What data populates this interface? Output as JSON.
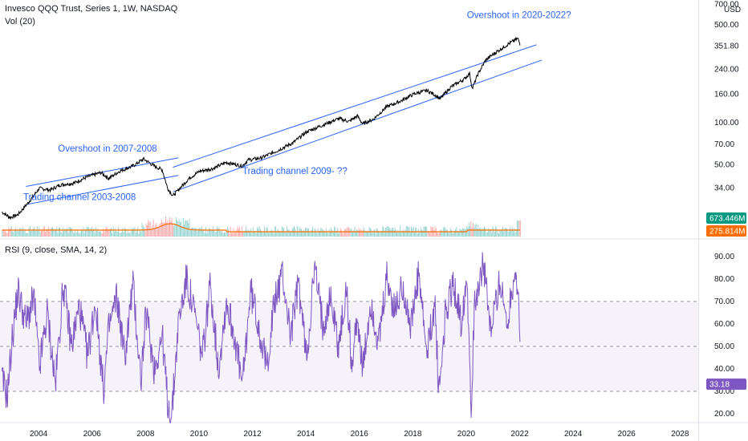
{
  "header": {
    "symbol": "Invesco QQQ Trust, Series 1, 1W, NASDAQ",
    "volume_label": "Vol (20)",
    "currency": "USD",
    "rsi_label": "RSI (9, close, SMA, 14, 2)"
  },
  "colors": {
    "price": "#000000",
    "channel": "#2962ff",
    "annotation": "#2962ff",
    "vol_up": "#26a69a",
    "vol_down": "#ef5350",
    "vol_ma": "#ff6d00",
    "rsi": "#7e57c2",
    "rsi_band": "#7e57c2",
    "volume_badge": "#089981",
    "vol_ma_badge": "#ff6d00",
    "rsi_badge": "#7e57c2"
  },
  "badges": {
    "volume": "673.446M",
    "volume_ma": "275.814M",
    "rsi": "33.18"
  },
  "annotations": [
    {
      "text": "Overshoot in 2020-2022?",
      "year": 2020.0,
      "price": 560
    },
    {
      "text": "Overshoot in 2007-2008",
      "year": 2004.7,
      "price": 62
    },
    {
      "text": "Trading channel 2009- ??",
      "year": 2011.6,
      "price": 43
    },
    {
      "text": "Trading channel 2003-2008",
      "year": 2003.4,
      "price": 28
    }
  ],
  "chart_data": [
    {
      "type": "line",
      "title": "Invesco QQQ Trust, Series 1, 1W, NASDAQ",
      "y_scale": "log",
      "y_unit": "USD",
      "x_ticks": [
        "2004",
        "2006",
        "2008",
        "2010",
        "2012",
        "2014",
        "2016",
        "2018",
        "2020",
        "2022",
        "2024",
        "2026",
        "2028"
      ],
      "y_ticks": [
        "34.00",
        "50.00",
        "70.00",
        "100.00",
        "160.00",
        "240.00",
        "351.80",
        "500.00",
        "700.00"
      ],
      "series": [
        {
          "x": [
            2002.6,
            2002.9,
            2003.2,
            2003.6,
            2004.0,
            2004.4,
            2004.8,
            2005.3,
            2005.8,
            2006.3,
            2006.6,
            2007.0,
            2007.5,
            2007.9,
            2008.3,
            2008.6,
            2008.8,
            2009.0,
            2009.2,
            2009.6,
            2010.0,
            2010.5,
            2011.0,
            2011.6,
            2011.8,
            2012.3,
            2012.9,
            2013.5,
            2014.0,
            2014.6,
            2015.2,
            2015.6,
            2015.9,
            2016.1,
            2016.5,
            2017.0,
            2017.5,
            2018.0,
            2018.5,
            2018.8,
            2019.0,
            2019.4,
            2019.9,
            2020.1,
            2020.2,
            2020.4,
            2020.7,
            2021.0,
            2021.5,
            2021.9,
            2022.0
          ],
          "y": [
            23,
            21,
            22,
            27,
            34,
            33,
            36,
            37,
            41,
            44,
            40,
            45,
            49,
            55,
            49,
            46,
            34,
            30,
            33,
            40,
            45,
            47,
            52,
            49,
            54,
            56,
            63,
            72,
            86,
            96,
            107,
            102,
            112,
            98,
            106,
            130,
            142,
            160,
            170,
            158,
            148,
            180,
            205,
            225,
            175,
            220,
            280,
            310,
            360,
            400,
            360
          ]
        }
      ],
      "channels": [
        {
          "name": "Trading channel 2003-2008",
          "upper": [
            [
              2003.5,
              35
            ],
            [
              2009.2,
              56
            ]
          ],
          "lower": [
            [
              2003.5,
              26
            ],
            [
              2009.2,
              42
            ]
          ]
        },
        {
          "name": "Trading channel 2009- ??",
          "upper": [
            [
              2009.0,
              48
            ],
            [
              2022.6,
              360
            ]
          ],
          "lower": [
            [
              2009.0,
              32
            ],
            [
              2022.8,
              280
            ]
          ]
        }
      ]
    },
    {
      "type": "bar",
      "title": "Vol (20)",
      "last_value": "673.446M",
      "ma_last_value": "275.814M"
    },
    {
      "type": "line",
      "title": "RSI (9, close, SMA, 14, 2)",
      "y_ticks": [
        "20.00",
        "30.00",
        "40.00",
        "50.00",
        "60.00",
        "70.00",
        "80.00",
        "90.00"
      ],
      "band": [
        30,
        70
      ],
      "midline": 50,
      "last_value": 33.18,
      "series": [
        {
          "x": [
            2002.6,
            2002.8,
            2003.0,
            2003.2,
            2003.5,
            2003.8,
            2004.0,
            2004.3,
            2004.6,
            2004.9,
            2005.2,
            2005.5,
            2005.8,
            2006.1,
            2006.4,
            2006.6,
            2006.9,
            2007.2,
            2007.5,
            2007.8,
            2008.0,
            2008.3,
            2008.6,
            2008.8,
            2008.95,
            2009.2,
            2009.5,
            2009.8,
            2010.1,
            2010.4,
            2010.7,
            2011.0,
            2011.3,
            2011.6,
            2011.9,
            2012.2,
            2012.5,
            2012.8,
            2013.1,
            2013.4,
            2013.7,
            2014.0,
            2014.3,
            2014.6,
            2014.9,
            2015.2,
            2015.5,
            2015.7,
            2015.9,
            2016.1,
            2016.4,
            2016.7,
            2017.0,
            2017.3,
            2017.6,
            2017.9,
            2018.2,
            2018.5,
            2018.8,
            2018.95,
            2019.2,
            2019.5,
            2019.8,
            2020.0,
            2020.15,
            2020.3,
            2020.6,
            2020.9,
            2021.2,
            2021.5,
            2021.8,
            2021.95,
            2022.0
          ],
          "y": [
            35,
            28,
            55,
            75,
            60,
            72,
            40,
            65,
            33,
            78,
            50,
            68,
            45,
            70,
            30,
            58,
            72,
            45,
            78,
            35,
            65,
            40,
            55,
            25,
            18,
            60,
            80,
            65,
            45,
            78,
            40,
            70,
            55,
            32,
            75,
            60,
            40,
            70,
            82,
            55,
            78,
            45,
            85,
            60,
            72,
            50,
            75,
            40,
            65,
            38,
            70,
            50,
            80,
            65,
            78,
            58,
            82,
            45,
            70,
            28,
            65,
            78,
            60,
            85,
            23,
            70,
            88,
            55,
            80,
            60,
            85,
            70,
            33
          ]
        }
      ]
    }
  ]
}
